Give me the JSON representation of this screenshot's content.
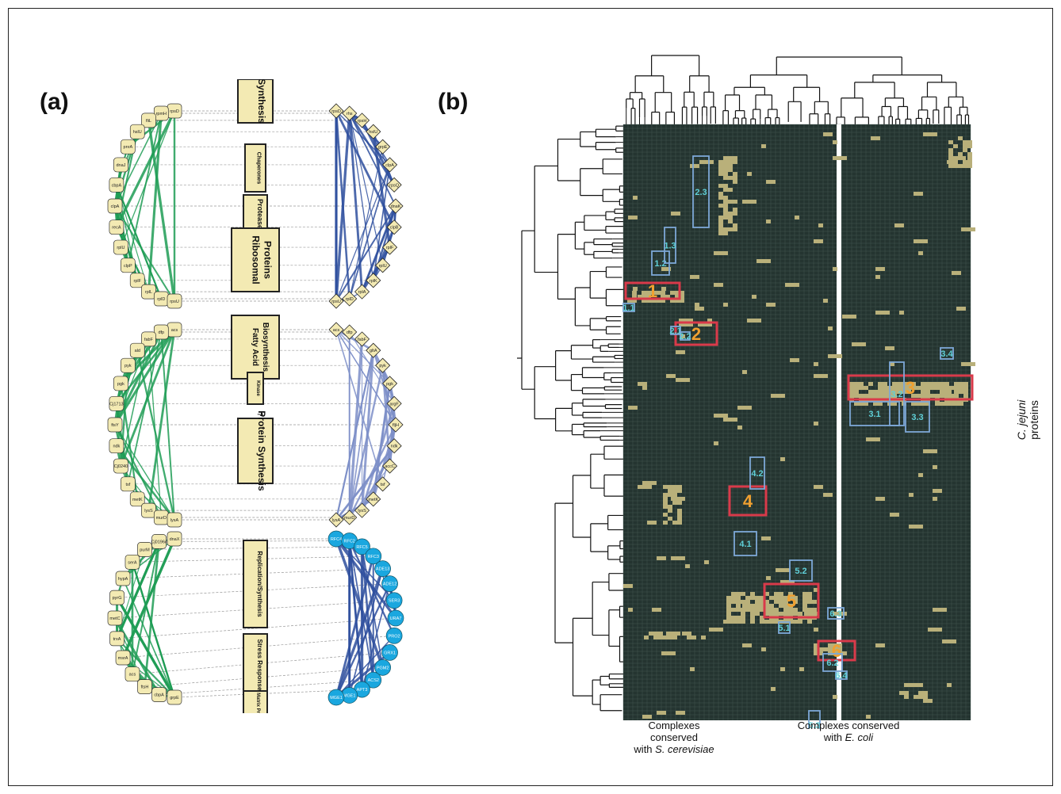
{
  "panels": {
    "a": "(a)",
    "b": "(b)"
  },
  "colors": {
    "green_edge": "#1f9d55",
    "blue_edge": "#2e4f9e",
    "node_fill": "#f3eab3",
    "cyan_node": "#1aa7df",
    "heat_bg": "#243430",
    "heat_hit": "#b9b07a",
    "main_cluster": "#d93a4a",
    "sub_cluster": "#7da8d8",
    "main_label": "#f0a030",
    "sub_label": "#5fd0d8"
  },
  "networks": [
    {
      "id": "ribosome-chaperone",
      "left_nodes": [
        "rpsD",
        "rpmH",
        "fliL",
        "hslU",
        "pnrA",
        "dnaJ",
        "cbpA",
        "clpA",
        "recA",
        "rplU",
        "clpP",
        "rplF",
        "rplL",
        "rplD",
        "rpsU"
      ],
      "right_nodes": [
        "rpsD",
        "rhs",
        "rpsH",
        "hslU",
        "grpE",
        "clpA",
        "rpsQ",
        "dnaK",
        "clpB",
        "rplF",
        "rplU",
        "rplK",
        "rplA",
        "rplD",
        "rpsU"
      ],
      "categories": [
        "Synthesis",
        "Chaperones",
        "Protease",
        "Ribosomal Proteins"
      ]
    },
    {
      "id": "fatty-acid",
      "left_nodes": [
        "acs",
        "dfp",
        "fabF",
        "ald",
        "pyk",
        "pgk",
        "Cj1713",
        "ftsY",
        "ndk",
        "Cj0240",
        "tsf",
        "metK",
        "lysS",
        "murD",
        "lysA"
      ],
      "right_nodes": [
        "acs",
        "dfp",
        "fabF",
        "gltA",
        "pyk",
        "pgk",
        "argF",
        "fljH",
        "ndk",
        "accC",
        "tsf",
        "metK",
        "lysS",
        "murD",
        "lysA"
      ],
      "categories": [
        "Fatty Acid Biosynthesis",
        "Kinase",
        "?",
        "Protein Synthesis"
      ]
    },
    {
      "id": "replication",
      "left_nodes": [
        "dnaX",
        "Cj0196c",
        "purM",
        "serA",
        "hypA",
        "pyrG",
        "metC",
        "trxA",
        "msrA",
        "acs",
        "ftsH",
        "cbpA",
        "grpE"
      ],
      "right_nodes": [
        "RFC4",
        "RFC2",
        "RFC5",
        "RFC3",
        "ADE13",
        "ADE12",
        "SER3",
        "URA7",
        "PRO2",
        "GRX1",
        "PGM2",
        "ACS2",
        "APT3",
        "MGE1",
        "MGE1"
      ],
      "categories": [
        "Replication/Synthesis",
        "Stress Response",
        "Matrix Proteins"
      ]
    }
  ],
  "heatmap": {
    "main_clusters": [
      "1",
      "2",
      "3",
      "4",
      "5",
      "6"
    ],
    "sub_clusters": [
      "1.1",
      "1.2",
      "1.3",
      "2.1",
      "2.2",
      "2.3",
      "3.1",
      "3.2",
      "3.3",
      "3.4",
      "4.1",
      "4.2",
      "5.1",
      "5.2",
      "6.1",
      "6.2",
      "6.3",
      "6.4",
      "5.3"
    ],
    "caption_left": [
      "Complexes",
      "conserved",
      "with "
    ],
    "caption_left_italic": "S. cerevisiae",
    "caption_right": "Complexes conserved",
    "caption_right_prefix": "with ",
    "caption_right_italic": "E. coli",
    "side_label_italic": "C. jejuni",
    "side_label": "proteins"
  }
}
